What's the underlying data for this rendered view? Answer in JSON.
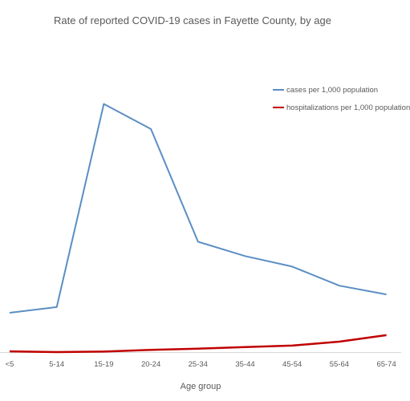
{
  "chart_data": {
    "type": "line",
    "title": "Rate of reported COVID-19 cases in Fayette County, by age",
    "xlabel": "Age group",
    "ylabel": "",
    "categories": [
      "<5",
      "5-14",
      "15-19",
      "20-24",
      "25-34",
      "35-44",
      "45-54",
      "55-64",
      "65-74"
    ],
    "ylim": [
      0,
      100
    ],
    "grid": false,
    "legend_position": "top-right",
    "series": [
      {
        "name": "cases per 1,000 population",
        "color": "#5b8ec4",
        "values": [
          15.8,
          18.1,
          99.8,
          89.7,
          44.4,
          38.6,
          34.4,
          26.7,
          23.2
        ]
      },
      {
        "name": "hospitalizations per 1,000 population",
        "color": "#c00000",
        "values": [
          0.3,
          0.0,
          0.2,
          0.9,
          1.4,
          2.0,
          2.6,
          4.2,
          6.8
        ]
      }
    ]
  }
}
